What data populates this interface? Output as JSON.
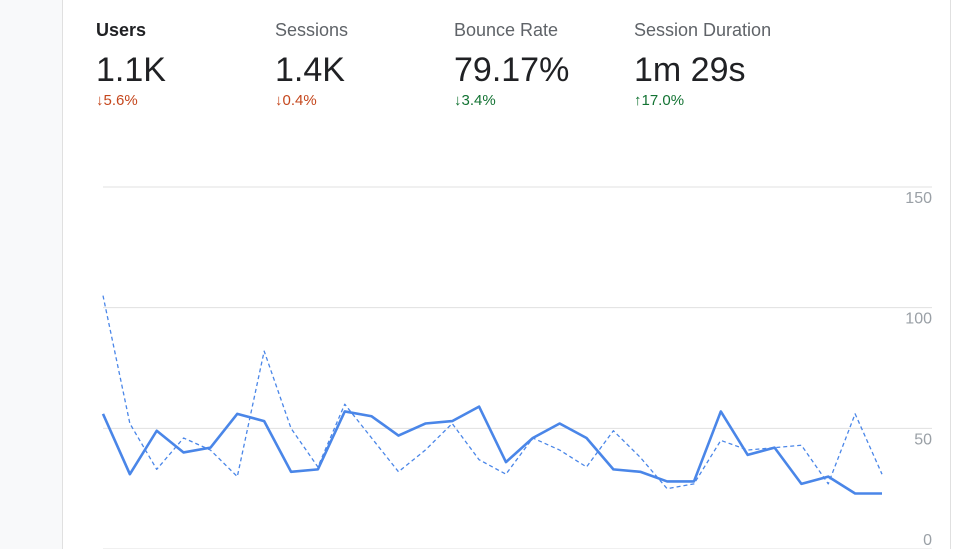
{
  "metrics": [
    {
      "label": "Users",
      "value": "1.1K",
      "change": "↓5.6%",
      "color": "#c5471d",
      "selected": true
    },
    {
      "label": "Sessions",
      "value": "1.4K",
      "change": "↓0.4%",
      "color": "#c5471d",
      "selected": false
    },
    {
      "label": "Bounce Rate",
      "value": "79.17%",
      "change": "↓3.4%",
      "color": "#137333",
      "selected": false
    },
    {
      "label": "Session Duration",
      "value": "1m 29s",
      "change": "↑17.0%",
      "color": "#137333",
      "selected": false
    }
  ],
  "chart_data": {
    "type": "line",
    "x": [
      0,
      1,
      2,
      3,
      4,
      5,
      6,
      7,
      8,
      9,
      10,
      11,
      12,
      13,
      14,
      15,
      16,
      17,
      18,
      19,
      20,
      21,
      22,
      23,
      24,
      25,
      26,
      27,
      28,
      29
    ],
    "xlim": [
      0,
      29
    ],
    "series": [
      {
        "color": "#4a86e8",
        "dashed": false,
        "values": [
          56,
          31,
          49,
          40,
          42,
          56,
          53,
          32,
          33,
          57,
          55,
          47,
          52,
          53,
          59,
          36,
          46,
          52,
          46,
          33,
          32,
          28,
          28,
          57,
          39,
          42,
          27,
          30,
          23,
          23
        ]
      },
      {
        "color": "#4a86e8",
        "dashed": true,
        "values": [
          105,
          52,
          33,
          46,
          41,
          30,
          82,
          50,
          34,
          60,
          46,
          32,
          41,
          52,
          37,
          31,
          46,
          41,
          34,
          49,
          38,
          25,
          27,
          45,
          41,
          42,
          43,
          27,
          56,
          31
        ]
      }
    ],
    "ylim": [
      0,
      150
    ],
    "yticks": [
      0,
      50,
      100,
      150
    ],
    "grid": true
  }
}
